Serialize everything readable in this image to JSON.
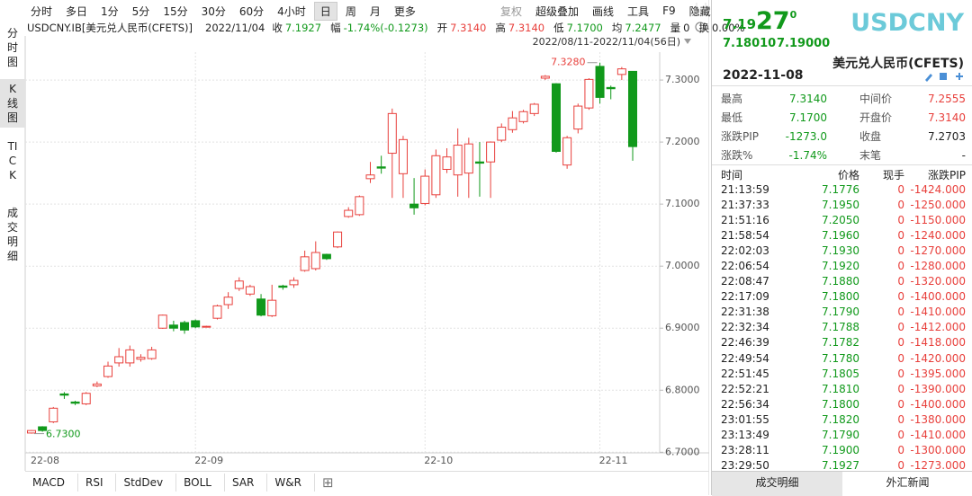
{
  "chart_data": {
    "type": "candlestick",
    "range_label": "2022/08/11-2022/11/04(56日)",
    "categories": [
      "22-08",
      null,
      null,
      null,
      null,
      null,
      null,
      null,
      null,
      null,
      null,
      null,
      null,
      null,
      null,
      "22-09",
      null,
      null,
      null,
      null,
      null,
      null,
      null,
      null,
      null,
      null,
      null,
      null,
      null,
      null,
      null,
      null,
      null,
      null,
      null,
      null,
      "22-10",
      null,
      null,
      null,
      null,
      null,
      null,
      null,
      null,
      null,
      null,
      null,
      null,
      null,
      null,
      null,
      "22-11",
      null,
      null,
      null
    ],
    "open": [
      6.731,
      6.741,
      6.749,
      6.794,
      6.781,
      6.778,
      6.807,
      6.822,
      6.844,
      6.844,
      6.85,
      6.851,
      6.9,
      6.905,
      6.909,
      6.912,
      6.902,
      6.916,
      6.938,
      6.964,
      6.955,
      6.947,
      6.92,
      6.968,
      6.97,
      6.993,
      6.996,
      7.019,
      7.031,
      7.08,
      7.083,
      7.141,
      7.16,
      7.182,
      7.149,
      7.1,
      7.101,
      7.115,
      7.156,
      7.147,
      7.15,
      7.168,
      7.168,
      7.203,
      7.22,
      7.233,
      7.246,
      7.303,
      7.294,
      7.163,
      7.221,
      7.255,
      7.322,
      7.288,
      7.309,
      7.314
    ],
    "high": [
      6.736,
      6.742,
      6.773,
      6.797,
      6.783,
      6.797,
      6.814,
      6.846,
      6.868,
      6.872,
      6.858,
      6.87,
      6.922,
      6.912,
      6.912,
      6.914,
      6.904,
      6.938,
      6.958,
      6.982,
      6.97,
      6.955,
      6.97,
      6.97,
      6.982,
      7.025,
      7.04,
      7.02,
      7.056,
      7.095,
      7.114,
      7.168,
      7.178,
      7.254,
      7.21,
      7.142,
      7.156,
      7.188,
      7.19,
      7.222,
      7.207,
      7.2,
      7.201,
      7.23,
      7.25,
      7.252,
      7.263,
      7.308,
      7.295,
      7.21,
      7.262,
      7.303,
      7.328,
      7.291,
      7.321,
      7.314
    ],
    "low": [
      6.73,
      6.733,
      6.747,
      6.786,
      6.776,
      6.776,
      6.805,
      6.82,
      6.838,
      6.838,
      6.846,
      6.849,
      6.899,
      6.895,
      6.891,
      6.9,
      6.901,
      6.914,
      6.931,
      6.96,
      6.952,
      6.919,
      6.918,
      6.962,
      6.965,
      6.991,
      6.993,
      7.01,
      7.029,
      7.078,
      7.081,
      7.134,
      7.149,
      7.11,
      7.11,
      7.083,
      7.098,
      7.11,
      7.15,
      7.112,
      7.11,
      7.112,
      7.11,
      7.2,
      7.215,
      7.23,
      7.242,
      7.3,
      7.183,
      7.157,
      7.214,
      7.252,
      7.262,
      7.269,
      7.3,
      7.17
    ],
    "close": [
      6.735,
      6.735,
      6.771,
      6.792,
      6.779,
      6.795,
      6.81,
      6.839,
      6.854,
      6.865,
      6.853,
      6.865,
      6.921,
      6.9,
      6.897,
      6.902,
      6.903,
      6.936,
      6.95,
      6.976,
      6.967,
      6.921,
      6.945,
      6.966,
      6.977,
      7.015,
      7.022,
      7.012,
      7.055,
      7.09,
      7.112,
      7.147,
      7.158,
      7.246,
      7.204,
      7.094,
      7.145,
      7.178,
      7.176,
      7.195,
      7.197,
      7.166,
      7.2,
      7.224,
      7.239,
      7.249,
      7.261,
      7.306,
      7.185,
      7.207,
      7.258,
      7.301,
      7.272,
      7.286,
      7.318,
      7.1927
    ],
    "up_color": "#e8403c",
    "down_color": "#11991b",
    "ylim": [
      6.699,
      7.345
    ],
    "yticks": [
      {
        "value": 6.7,
        "label": "6.7000"
      },
      {
        "value": 6.8,
        "label": "6.8000"
      },
      {
        "value": 6.9,
        "label": "6.9000"
      },
      {
        "value": 7.0,
        "label": "7.0000"
      },
      {
        "value": 7.1,
        "label": "7.1000"
      },
      {
        "value": 7.2,
        "label": "7.2000"
      },
      {
        "value": 7.3,
        "label": "7.3000"
      }
    ],
    "grid": true,
    "annotations": [
      {
        "value": 7.328,
        "label": "7.3280",
        "color": "#e8403c"
      },
      {
        "value": 6.73,
        "label": "6.7300",
        "color": "#11991b"
      }
    ]
  },
  "side_tabs": [
    "分时图",
    "K线图",
    "TICK",
    "成交明细"
  ],
  "toolbar": {
    "left": [
      "分时",
      "多日",
      "1分",
      "5分",
      "15分",
      "30分",
      "60分",
      "4小时",
      "日",
      "周",
      "月",
      "更多"
    ],
    "right": [
      "复权",
      "超级叠加",
      "画线",
      "工具",
      "F9",
      "隐藏"
    ]
  },
  "info": {
    "symbol": "USDCNY.IB[美元兑人民币(CFETS)]",
    "date": "2022/11/04",
    "fields": [
      {
        "label": "收",
        "value": "7.1927",
        "color": "#11991b"
      },
      {
        "label": "幅",
        "value": "-1.74%(-0.1273)",
        "color": "#11991b"
      },
      {
        "label": "开",
        "value": "7.3140",
        "color": "#e8403c"
      },
      {
        "label": "高",
        "value": "7.3140",
        "color": "#e8403c"
      },
      {
        "label": "低",
        "value": "7.1700",
        "color": "#11991b"
      },
      {
        "label": "均",
        "value": "7.2477",
        "color": "#11991b"
      },
      {
        "label": "量",
        "value": "0",
        "color": "#222222"
      },
      {
        "label": "换",
        "value": "0.00%",
        "color": "#222222"
      }
    ]
  },
  "indicator_tabs": [
    "MACD",
    "RSI",
    "StdDev",
    "BOLL",
    "SAR",
    "W&R"
  ],
  "quote": {
    "price_main": "7.19",
    "price_big": "27",
    "price_sup": "0",
    "bid": "7.18010",
    "ask": "7.19000",
    "code": "USDCNY",
    "name": "美元兑人民币(CFETS)",
    "date": "2022-11-08",
    "stats": [
      [
        "最高",
        "7.3140",
        "中间价",
        "7.2555"
      ],
      [
        "最低",
        "7.1700",
        "开盘价",
        "7.3140"
      ],
      [
        "涨跌PIP",
        "-1273.0",
        "收盘",
        "7.2703"
      ],
      [
        "涨跌%",
        "-1.74%",
        "末笔",
        "-"
      ]
    ]
  },
  "ticks": {
    "columns": [
      "时间",
      "价格",
      "现手",
      "涨跌PIP"
    ],
    "rows": [
      [
        "21:13:59",
        "7.1776",
        "0",
        "-1424.000"
      ],
      [
        "21:37:33",
        "7.1950",
        "0",
        "-1250.000"
      ],
      [
        "21:51:16",
        "7.2050",
        "0",
        "-1150.000"
      ],
      [
        "21:58:54",
        "7.1960",
        "0",
        "-1240.000"
      ],
      [
        "22:02:03",
        "7.1930",
        "0",
        "-1270.000"
      ],
      [
        "22:06:54",
        "7.1920",
        "0",
        "-1280.000"
      ],
      [
        "22:08:47",
        "7.1880",
        "0",
        "-1320.000"
      ],
      [
        "22:17:09",
        "7.1800",
        "0",
        "-1400.000"
      ],
      [
        "22:31:38",
        "7.1790",
        "0",
        "-1410.000"
      ],
      [
        "22:32:34",
        "7.1788",
        "0",
        "-1412.000"
      ],
      [
        "22:46:39",
        "7.1782",
        "0",
        "-1418.000"
      ],
      [
        "22:49:54",
        "7.1780",
        "0",
        "-1420.000"
      ],
      [
        "22:51:45",
        "7.1805",
        "0",
        "-1395.000"
      ],
      [
        "22:52:21",
        "7.1810",
        "0",
        "-1390.000"
      ],
      [
        "22:56:34",
        "7.1800",
        "0",
        "-1400.000"
      ],
      [
        "23:01:55",
        "7.1820",
        "0",
        "-1380.000"
      ],
      [
        "23:13:49",
        "7.1790",
        "0",
        "-1410.000"
      ],
      [
        "23:28:11",
        "7.1900",
        "0",
        "-1300.000"
      ],
      [
        "23:29:50",
        "7.1927",
        "0",
        "-1273.000"
      ]
    ]
  },
  "panel_tabs": [
    "成交明细",
    "外汇新闻"
  ]
}
